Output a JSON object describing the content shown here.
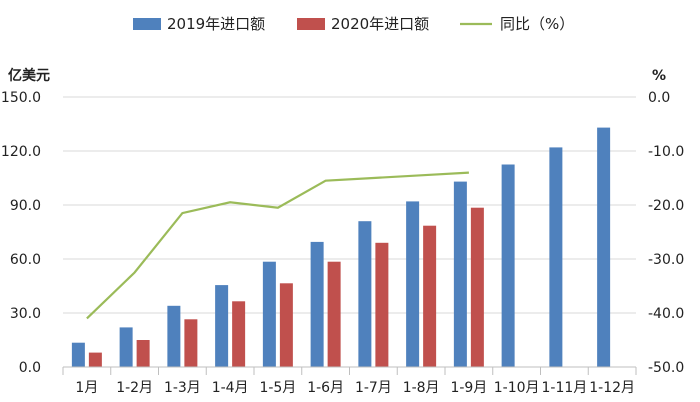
{
  "chart_data": {
    "type": "bar+line",
    "title": "",
    "left_unit": "亿美元",
    "right_unit": "%",
    "categories": [
      "1月",
      "1-2月",
      "1-3月",
      "1-4月",
      "1-5月",
      "1-6月",
      "1-7月",
      "1-8月",
      "1-9月",
      "1-10月",
      "1-11月",
      "1-12月"
    ],
    "series": [
      {
        "name": "2019年进口额",
        "type": "bar",
        "axis": "left",
        "color": "#4f81bd",
        "values": [
          13.5,
          22.0,
          34.0,
          45.5,
          58.5,
          69.5,
          81.0,
          92.0,
          103.0,
          112.5,
          122.0,
          133.0
        ]
      },
      {
        "name": "2020年进口额",
        "type": "bar",
        "axis": "left",
        "color": "#c0504d",
        "values": [
          8.0,
          15.0,
          26.5,
          36.5,
          46.5,
          58.5,
          69.0,
          78.5,
          88.5,
          null,
          null,
          null
        ]
      },
      {
        "name": "同比（%）",
        "type": "line",
        "axis": "right",
        "color": "#9bbb59",
        "values": [
          -41.0,
          -32.5,
          -21.5,
          -19.5,
          -20.5,
          -15.5,
          -15.0,
          -14.5,
          -14.0,
          null,
          null,
          null
        ]
      }
    ],
    "left_axis": {
      "min": 0,
      "max": 150,
      "ticks": [
        "0.0",
        "30.0",
        "60.0",
        "90.0",
        "120.0",
        "150.0"
      ]
    },
    "right_axis": {
      "min": -50,
      "max": 0,
      "ticks": [
        "-50.0",
        "-40.0",
        "-30.0",
        "-20.0",
        "-10.0",
        "0.0"
      ]
    },
    "grid": true,
    "legend_position": "top"
  }
}
